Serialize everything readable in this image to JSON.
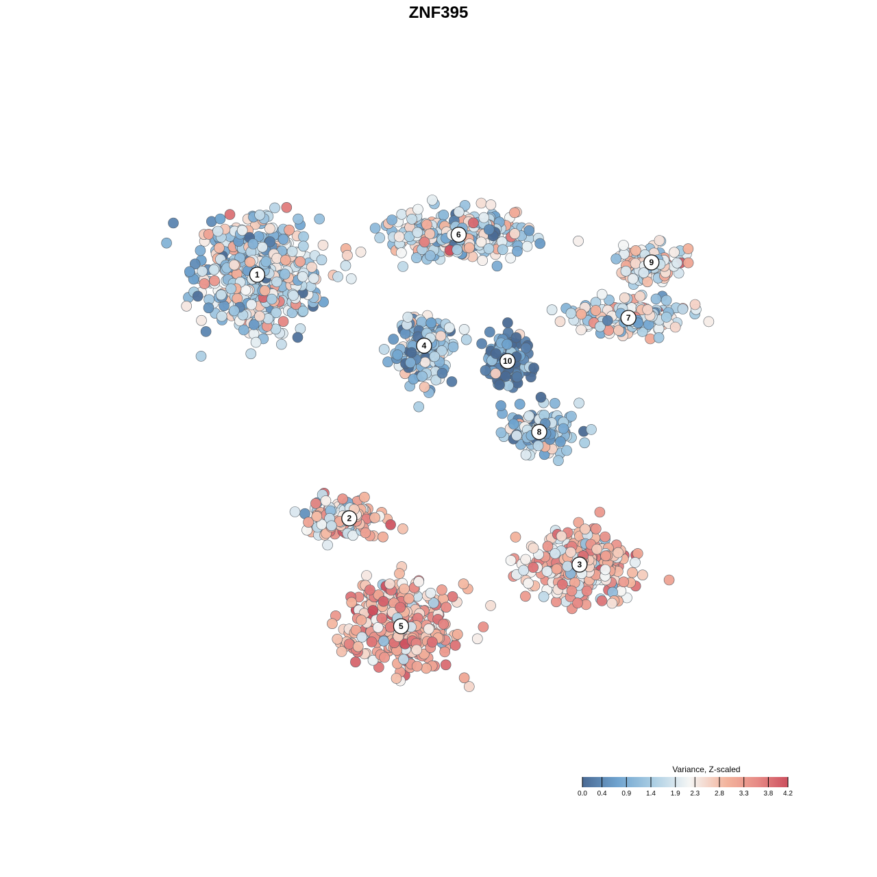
{
  "chart_data": {
    "type": "scatter",
    "title": "ZNF395",
    "legend": {
      "title": "Variance, Z-scaled",
      "position": "bottom-right",
      "ticks": [
        0.0,
        0.4,
        0.9,
        1.4,
        1.9,
        2.3,
        2.8,
        3.3,
        3.8,
        4.2
      ],
      "tick_labels": [
        "0.0",
        "0.4",
        "0.9",
        "1.4",
        "1.9",
        "2.3",
        "2.8",
        "3.3",
        "3.8",
        "4.2"
      ],
      "range": [
        0.0,
        4.2
      ]
    },
    "colorscale": [
      "#4a6a94",
      "#6fa3cf",
      "#a9cde3",
      "#f5f6f5",
      "#f3b49d",
      "#e78b86",
      "#cc4f5e"
    ],
    "clusters": [
      {
        "id": "1",
        "x": -0.63,
        "y": 0.52,
        "mean_value": 1.6
      },
      {
        "id": "2",
        "x": -0.31,
        "y": -0.27,
        "mean_value": 2.6
      },
      {
        "id": "3",
        "x": 0.49,
        "y": -0.42,
        "mean_value": 2.6
      },
      {
        "id": "4",
        "x": -0.05,
        "y": 0.29,
        "mean_value": 1.3
      },
      {
        "id": "5",
        "x": -0.13,
        "y": -0.62,
        "mean_value": 2.9
      },
      {
        "id": "6",
        "x": 0.07,
        "y": 0.65,
        "mean_value": 1.7
      },
      {
        "id": "7",
        "x": 0.66,
        "y": 0.38,
        "mean_value": 1.9
      },
      {
        "id": "8",
        "x": 0.35,
        "y": 0.01,
        "mean_value": 1.3
      },
      {
        "id": "9",
        "x": 0.74,
        "y": 0.56,
        "mean_value": 2.2
      },
      {
        "id": "10",
        "x": 0.24,
        "y": 0.24,
        "mean_value": 0.3
      }
    ]
  }
}
